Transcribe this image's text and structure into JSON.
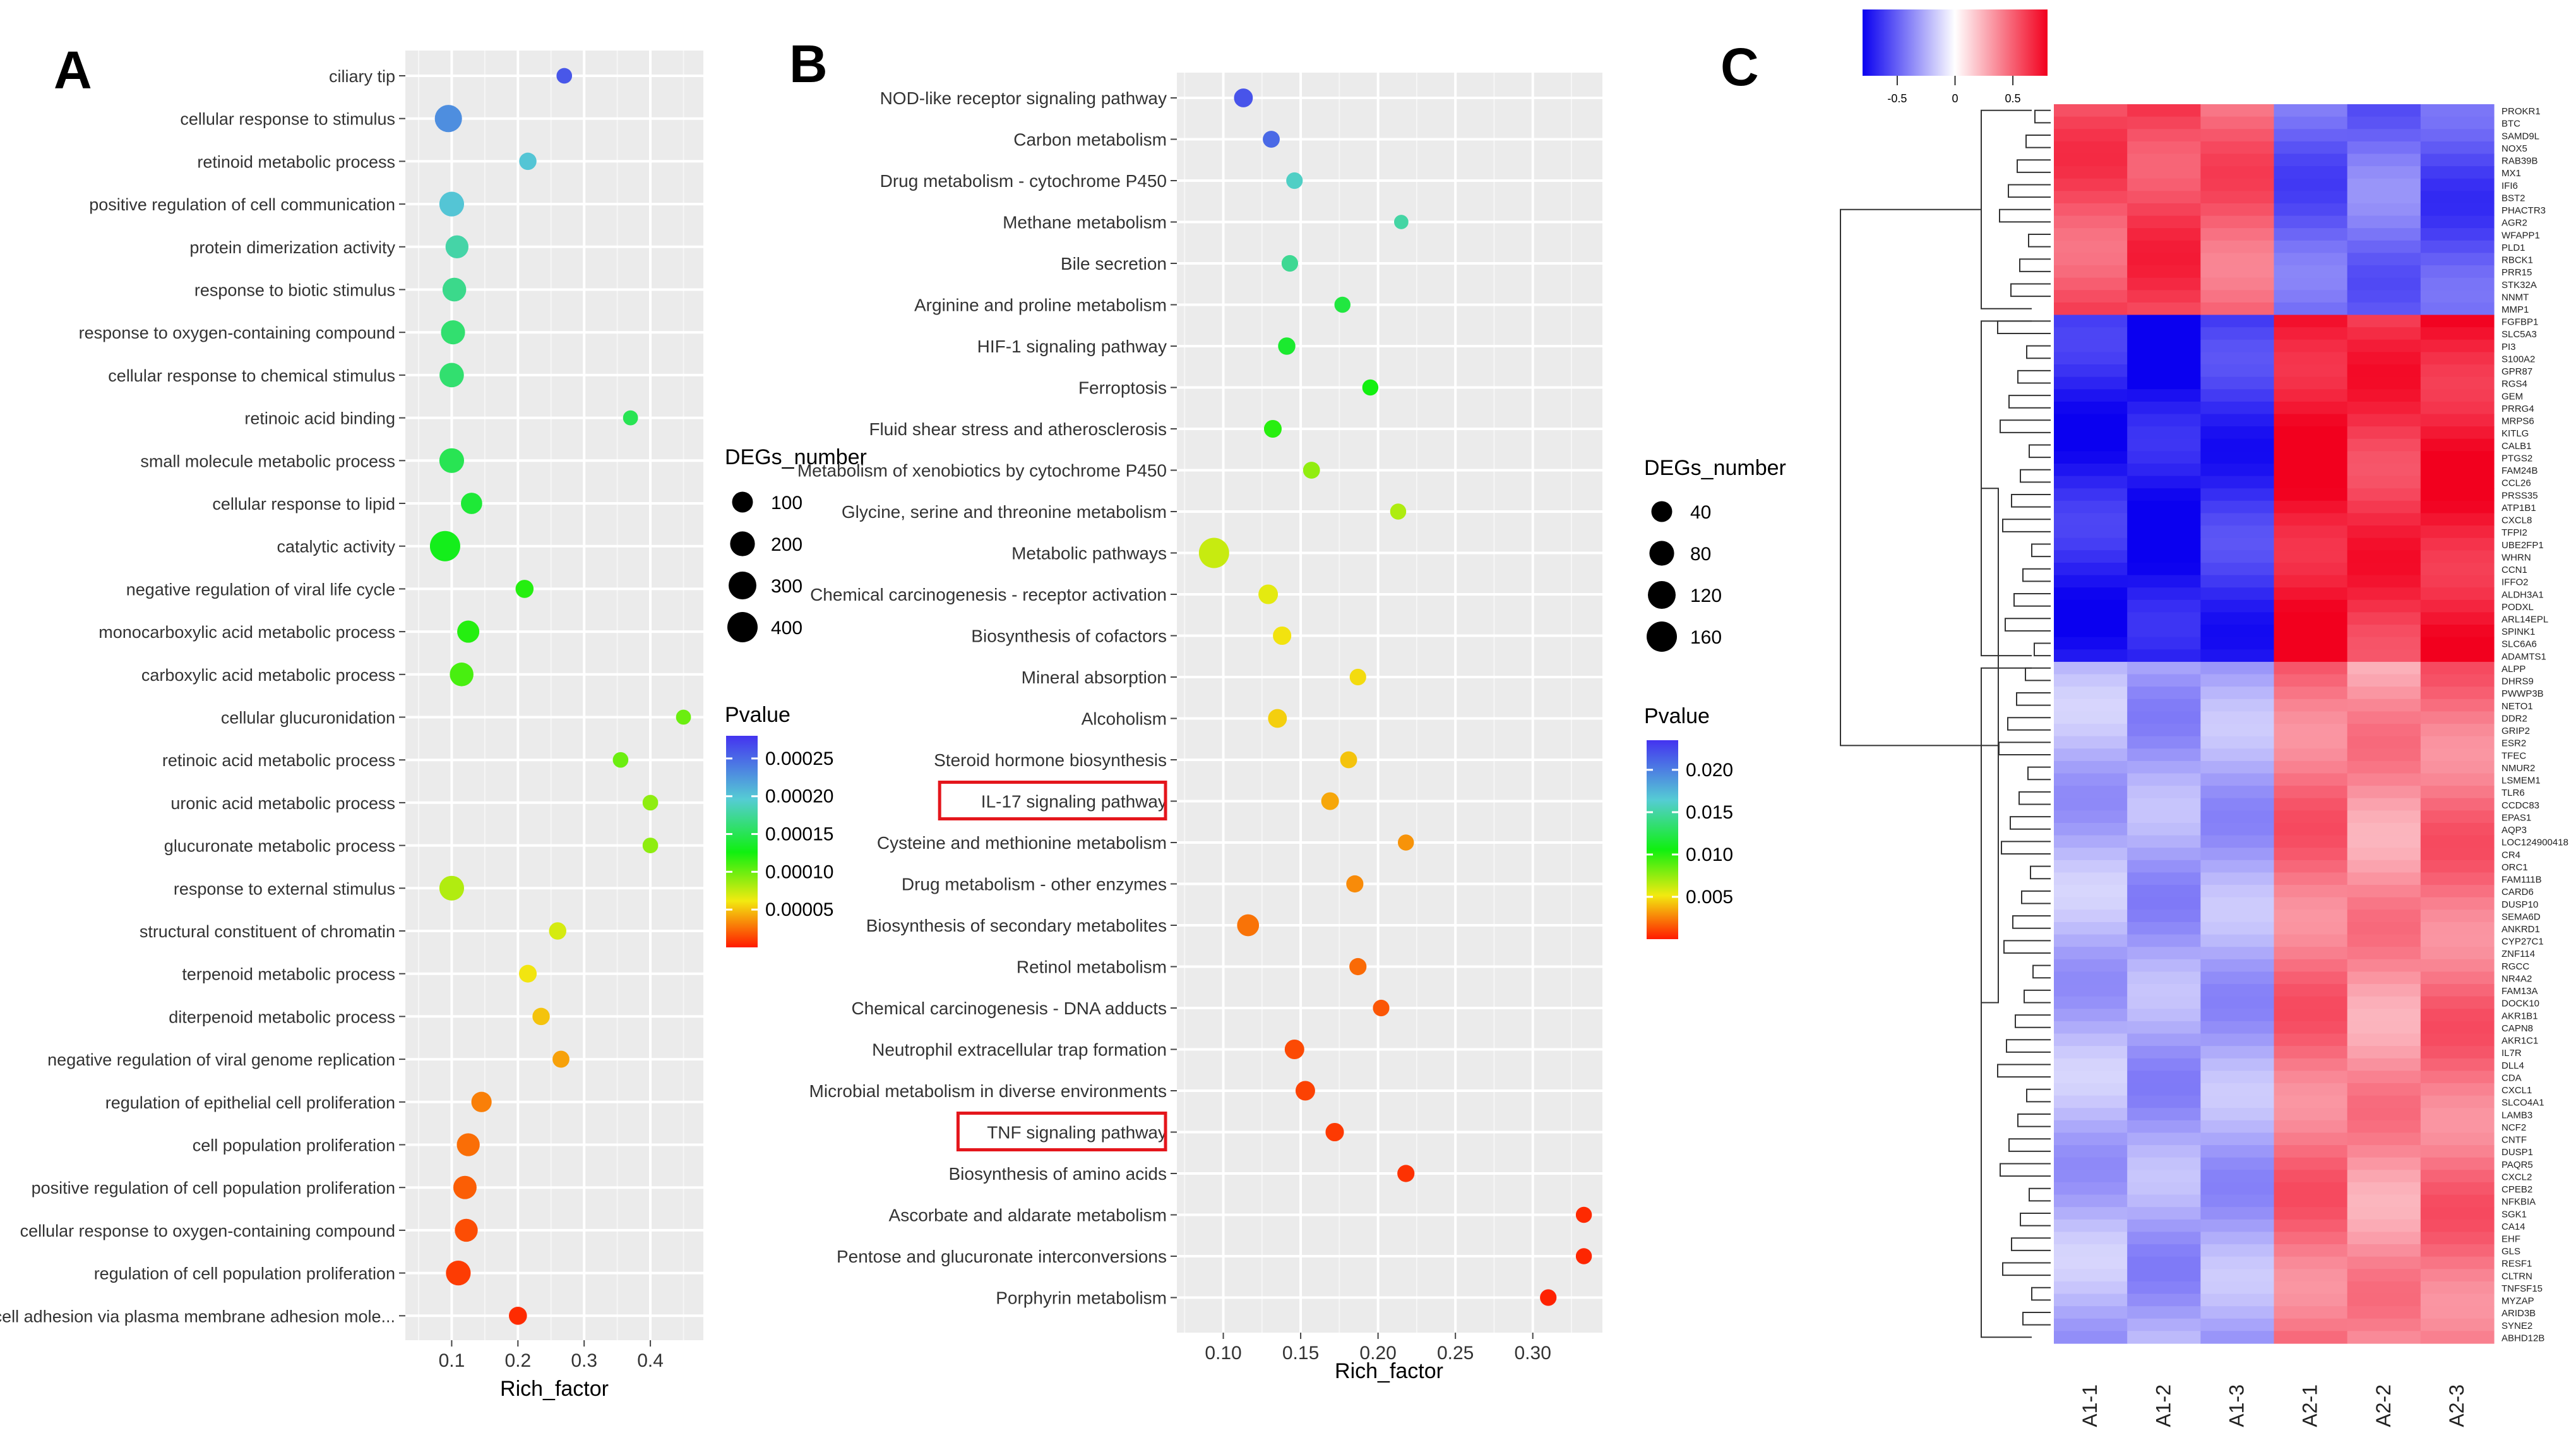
{
  "panels": {
    "a": "A",
    "b": "B",
    "c": "C"
  },
  "colors": {
    "panel_bg": "#ebebeb",
    "grid": "#ffffff",
    "highlight_box": "#e4161c",
    "heat_low": "#0a00f0",
    "heat_mid": "#ffffff",
    "heat_high": "#f2001e"
  },
  "chart_data": [
    {
      "type": "scatter",
      "panel": "A",
      "xlabel": "Rich_factor",
      "xlim": [
        0.03,
        0.48
      ],
      "xticks": [
        0.1,
        0.2,
        0.3,
        0.4
      ],
      "xtick_labels": [
        "0.1",
        "0.2",
        "0.3",
        "0.4"
      ],
      "size_legend": {
        "title": "DEGs_number",
        "values": [
          100,
          200,
          300,
          400
        ],
        "labels": [
          "100",
          "200",
          "300",
          "400"
        ]
      },
      "color_legend": {
        "title": "Pvalue",
        "range": [
          0,
          0.00028
        ],
        "ticks": [
          0.00025,
          0.0002,
          0.00015,
          0.0001,
          5e-05
        ],
        "labels": [
          "0.00025",
          "0.00020",
          "0.00015",
          "0.00010",
          "0.00005"
        ]
      },
      "terms": [
        {
          "name": "ciliary tip",
          "rich": 0.27,
          "pval": 0.00026,
          "degs": 20
        },
        {
          "name": "cellular response to stimulus",
          "rich": 0.095,
          "pval": 0.00023,
          "degs": 280
        },
        {
          "name": "retinoid metabolic process",
          "rich": 0.215,
          "pval": 0.0002,
          "degs": 40
        },
        {
          "name": "positive regulation of cell communication",
          "rich": 0.1,
          "pval": 0.0002,
          "degs": 200
        },
        {
          "name": "protein dimerization activity",
          "rich": 0.108,
          "pval": 0.00018,
          "degs": 150
        },
        {
          "name": "response to biotic stimulus",
          "rich": 0.104,
          "pval": 0.00017,
          "degs": 170
        },
        {
          "name": "response to oxygen-containing compound",
          "rich": 0.102,
          "pval": 0.00016,
          "degs": 180
        },
        {
          "name": "cellular response to chemical stimulus",
          "rich": 0.1,
          "pval": 0.00016,
          "degs": 190
        },
        {
          "name": "retinoic acid binding",
          "rich": 0.37,
          "pval": 0.00015,
          "degs": 15
        },
        {
          "name": "small molecule metabolic process",
          "rich": 0.1,
          "pval": 0.00015,
          "degs": 200
        },
        {
          "name": "cellular response to lipid",
          "rich": 0.13,
          "pval": 0.00014,
          "degs": 110
        },
        {
          "name": "catalytic activity",
          "rich": 0.09,
          "pval": 0.00013,
          "degs": 400
        },
        {
          "name": "negative regulation of viral life cycle",
          "rich": 0.21,
          "pval": 0.00012,
          "degs": 50
        },
        {
          "name": "monocarboxylic acid metabolic process",
          "rich": 0.125,
          "pval": 0.00012,
          "degs": 130
        },
        {
          "name": "carboxylic acid metabolic process",
          "rich": 0.115,
          "pval": 0.00011,
          "degs": 170
        },
        {
          "name": "cellular glucuronidation",
          "rich": 0.45,
          "pval": 0.0001,
          "degs": 15
        },
        {
          "name": "retinoic acid metabolic process",
          "rich": 0.355,
          "pval": 0.0001,
          "degs": 20
        },
        {
          "name": "uronic acid metabolic process",
          "rich": 0.4,
          "pval": 9e-05,
          "degs": 20
        },
        {
          "name": "glucuronate metabolic process",
          "rich": 0.4,
          "pval": 9e-05,
          "degs": 20
        },
        {
          "name": "response to external stimulus",
          "rich": 0.1,
          "pval": 8e-05,
          "degs": 200
        },
        {
          "name": "structural constituent of chromatin",
          "rich": 0.26,
          "pval": 7e-05,
          "degs": 40
        },
        {
          "name": "terpenoid metabolic process",
          "rich": 0.215,
          "pval": 6e-05,
          "degs": 45
        },
        {
          "name": "diterpenoid metabolic process",
          "rich": 0.235,
          "pval": 5e-05,
          "degs": 40
        },
        {
          "name": "negative regulation of viral genome replication",
          "rich": 0.265,
          "pval": 4e-05,
          "degs": 35
        },
        {
          "name": "regulation of epithelial cell proliferation",
          "rich": 0.145,
          "pval": 3e-05,
          "degs": 90
        },
        {
          "name": "cell population proliferation",
          "rich": 0.125,
          "pval": 2.5e-05,
          "degs": 150
        },
        {
          "name": "positive regulation of cell population proliferation",
          "rich": 0.12,
          "pval": 2e-05,
          "degs": 160
        },
        {
          "name": "cellular response to oxygen-containing compound",
          "rich": 0.122,
          "pval": 1.5e-05,
          "degs": 150
        },
        {
          "name": "regulation of cell population proliferation",
          "rich": 0.11,
          "pval": 1e-05,
          "degs": 200
        },
        {
          "name": "homophilic cell adhesion via plasma membrane adhesion mole...",
          "rich": 0.2,
          "pval": 5e-06,
          "degs": 50
        }
      ]
    },
    {
      "type": "scatter",
      "panel": "B",
      "xlabel": "Rich_factor",
      "xlim": [
        0.07,
        0.345
      ],
      "xticks": [
        0.1,
        0.15,
        0.2,
        0.25,
        0.3
      ],
      "xtick_labels": [
        "0.10",
        "0.15",
        "0.20",
        "0.25",
        "0.30"
      ],
      "size_legend": {
        "title": "DEGs_number",
        "values": [
          40,
          80,
          120,
          160
        ],
        "labels": [
          "40",
          "80",
          "120",
          "160"
        ]
      },
      "color_legend": {
        "title": "Pvalue",
        "range": [
          0,
          0.0235
        ],
        "ticks": [
          0.02,
          0.015,
          0.01,
          0.005
        ],
        "labels": [
          "0.020",
          "0.015",
          "0.010",
          "0.005"
        ]
      },
      "highlighted": [
        "IL-17 signaling pathway",
        "TNF signaling pathway"
      ],
      "terms": [
        {
          "name": "NOD-like receptor signaling pathway",
          "rich": 0.113,
          "pval": 0.022,
          "degs": 25
        },
        {
          "name": "Carbon metabolism",
          "rich": 0.131,
          "pval": 0.021,
          "degs": 14
        },
        {
          "name": "Drug metabolism - cytochrome P450",
          "rich": 0.146,
          "pval": 0.016,
          "degs": 12
        },
        {
          "name": "Methane metabolism",
          "rich": 0.215,
          "pval": 0.015,
          "degs": 4
        },
        {
          "name": "Bile secretion",
          "rich": 0.143,
          "pval": 0.0145,
          "degs": 12
        },
        {
          "name": "Arginine and proline metabolism",
          "rich": 0.177,
          "pval": 0.012,
          "degs": 10
        },
        {
          "name": "HIF-1 signaling pathway",
          "rich": 0.141,
          "pval": 0.0115,
          "degs": 16
        },
        {
          "name": "Ferroptosis",
          "rich": 0.195,
          "pval": 0.0105,
          "degs": 10
        },
        {
          "name": "Fluid shear stress and atherosclerosis",
          "rich": 0.132,
          "pval": 0.01,
          "degs": 18
        },
        {
          "name": "Metabolism of xenobiotics by cytochrome P450",
          "rich": 0.157,
          "pval": 0.0075,
          "degs": 14
        },
        {
          "name": "Glycine, serine and threonine metabolism",
          "rich": 0.213,
          "pval": 0.0068,
          "degs": 10
        },
        {
          "name": "Metabolic pathways",
          "rich": 0.094,
          "pval": 0.0062,
          "degs": 160
        },
        {
          "name": "Chemical carcinogenesis - receptor activation",
          "rich": 0.129,
          "pval": 0.0055,
          "degs": 30
        },
        {
          "name": "Biosynthesis of cofactors",
          "rich": 0.138,
          "pval": 0.005,
          "degs": 22
        },
        {
          "name": "Mineral absorption",
          "rich": 0.187,
          "pval": 0.0048,
          "degs": 12
        },
        {
          "name": "Alcoholism",
          "rich": 0.135,
          "pval": 0.0045,
          "degs": 25
        },
        {
          "name": "Steroid hormone biosynthesis",
          "rich": 0.181,
          "pval": 0.0042,
          "degs": 14
        },
        {
          "name": "IL-17 signaling pathway",
          "rich": 0.169,
          "pval": 0.0035,
          "degs": 18
        },
        {
          "name": "Cysteine and methionine metabolism",
          "rich": 0.218,
          "pval": 0.003,
          "degs": 10
        },
        {
          "name": "Drug metabolism - other enzymes",
          "rich": 0.185,
          "pval": 0.0028,
          "degs": 15
        },
        {
          "name": "Biosynthesis of secondary metabolites",
          "rich": 0.116,
          "pval": 0.0022,
          "degs": 50
        },
        {
          "name": "Retinol metabolism",
          "rich": 0.187,
          "pval": 0.002,
          "degs": 15
        },
        {
          "name": "Chemical carcinogenesis - DNA adducts",
          "rich": 0.202,
          "pval": 0.0015,
          "degs": 12
        },
        {
          "name": "Neutrophil extracellular trap formation",
          "rich": 0.146,
          "pval": 0.0012,
          "degs": 30
        },
        {
          "name": "Microbial metabolism in diverse environments",
          "rich": 0.153,
          "pval": 0.001,
          "degs": 30
        },
        {
          "name": "TNF signaling pathway",
          "rich": 0.172,
          "pval": 0.0008,
          "degs": 22
        },
        {
          "name": "Biosynthesis of amino acids",
          "rich": 0.218,
          "pval": 0.0006,
          "degs": 15
        },
        {
          "name": "Ascorbate and aldarate metabolism",
          "rich": 0.333,
          "pval": 0.0004,
          "degs": 10
        },
        {
          "name": "Pentose and glucuronate interconversions",
          "rich": 0.333,
          "pval": 0.0003,
          "degs": 10
        },
        {
          "name": "Porphyrin metabolism",
          "rich": 0.31,
          "pval": 0.0002,
          "degs": 12
        }
      ]
    },
    {
      "type": "heatmap",
      "panel": "C",
      "samples": [
        "A1-1",
        "A1-2",
        "A1-3",
        "A2-1",
        "A2-2",
        "A2-3"
      ],
      "color_scale": {
        "ticks": [
          -0.5,
          0,
          0.5
        ],
        "labels": [
          "-0.5",
          "0",
          "0.5"
        ]
      },
      "gene_blocks": [
        {
          "genes": [
            "PROKR1",
            "BTC",
            "SAMD9L",
            "NOX5",
            "RAB39B",
            "MX1",
            "IFI6",
            "BST2",
            "PHACTR3",
            "AGR2",
            "WFAPP1",
            "PLD1",
            "RBCK1",
            "PRR15",
            "STK32A",
            "NNMT",
            "MMP1"
          ],
          "values": [
            0.55,
            0.6,
            0.5,
            -0.5,
            -0.45,
            -0.55
          ]
        },
        {
          "genes": [
            "FGFBP1",
            "SLC5A3",
            "PI3",
            "S100A2",
            "GPR87",
            "RGS4",
            "GEM",
            "PRRG4",
            "MRPS6",
            "KITLG",
            "CALB1",
            "PTGS2",
            "FAM24B",
            "CCL26",
            "PRSS35",
            "ATP1B1",
            "CXCL8",
            "TFPI2",
            "UBE2FP1",
            "WHRN",
            "CCN1",
            "IFFO2",
            "ALDH3A1",
            "PODXL",
            "ARL14EPL",
            "SPINK1",
            "SLC6A6",
            "ADAMTS1"
          ],
          "values": [
            -0.7,
            -0.75,
            -0.65,
            0.75,
            0.65,
            0.72
          ]
        },
        {
          "genes": [
            "ALPP",
            "DHRS9",
            "PWWP3B",
            "NETO1",
            "DDR2",
            "GRIP2",
            "ESR2",
            "TFEC",
            "NMUR2",
            "LSMEM1",
            "TLR6",
            "CCDC83",
            "EPAS1",
            "AQP3",
            "LOC124900418",
            "CR4",
            "ORC1",
            "FAM111B",
            "CARD6",
            "DUSP10",
            "SEMA6D",
            "ANKRD1",
            "CYP27C1",
            "ZNF114",
            "RGCC",
            "NR4A2",
            "FAM13A",
            "DOCK10",
            "AKR1B1",
            "CAPN8",
            "AKR1C1",
            "IL7R",
            "DLL4",
            "CDA",
            "CXCL1",
            "SLCO4A1",
            "LAMB3",
            "NCF2",
            "CNTF",
            "DUSP1",
            "PAQR5",
            "CXCL2",
            "CPEB2",
            "NFKBIA",
            "SGK1",
            "CA14",
            "EHF",
            "GLS",
            "RESF1",
            "CLTRN",
            "TNFSF15",
            "MYZAP",
            "ARID3B",
            "SYNE2",
            "ABHD12B"
          ],
          "values": [
            -0.25,
            -0.3,
            -0.28,
            0.45,
            0.35,
            0.45
          ]
        }
      ]
    }
  ]
}
